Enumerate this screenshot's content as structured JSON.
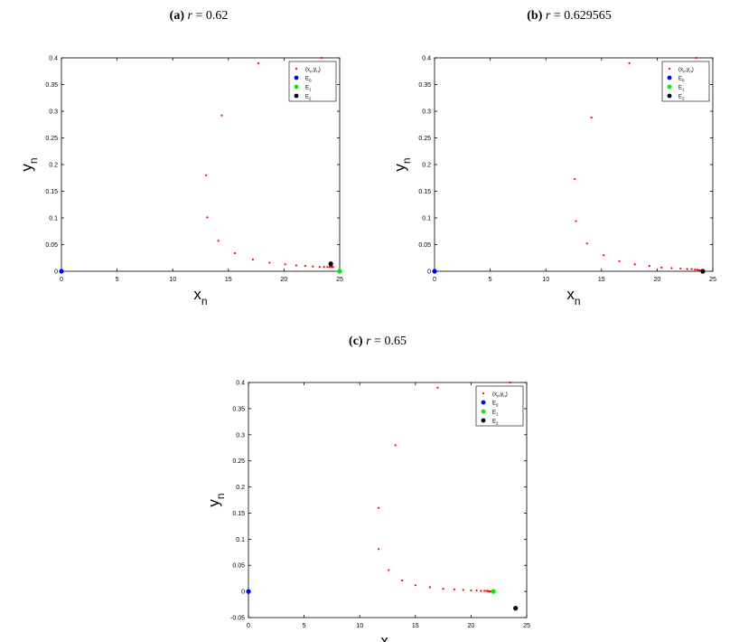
{
  "panels": [
    {
      "label": "(a)",
      "var": "r",
      "eq": " = ",
      "value": "0.62"
    },
    {
      "label": "(b)",
      "var": "r",
      "eq": " = ",
      "value": "0.629565"
    },
    {
      "label": "(c)",
      "var": "r",
      "eq": " = ",
      "value": "0.65"
    }
  ],
  "colors": {
    "orbit": "#ff0000",
    "E0": "#0000ff",
    "E1": "#00ee00",
    "E2": "#000000"
  },
  "chart_data": [
    {
      "type": "scatter",
      "title": "(a) r = 0.62",
      "xlabel": "x",
      "xlabel_sub": "n",
      "ylabel": "y",
      "ylabel_sub": "n",
      "xlim": [
        0,
        25
      ],
      "ylim": [
        0,
        0.4
      ],
      "xticks": [
        0,
        5,
        10,
        15,
        20,
        25
      ],
      "yticks": [
        0,
        0.05,
        0.1,
        0.15,
        0.2,
        0.25,
        0.3,
        0.35,
        0.4
      ],
      "legend": {
        "placement": "top-right",
        "entries": [
          {
            "key": "orbit",
            "text": "(x",
            "sub": "n",
            "mid": ",y",
            "sub2": "n",
            "end": ")"
          },
          {
            "key": "E0",
            "text": "E",
            "sub": "0"
          },
          {
            "key": "E1",
            "text": "E",
            "sub": "1"
          },
          {
            "key": "E2",
            "text": "E",
            "sub": "2"
          }
        ]
      },
      "series": [
        {
          "key": "orbit",
          "x": [
            23.4,
            17.7,
            14.4,
            13.0,
            13.1,
            14.1,
            15.6,
            17.2,
            18.7,
            20.1,
            21.1,
            21.9,
            22.6,
            23.2,
            23.6,
            23.9,
            24.1,
            24.2,
            24.3,
            24.35,
            24.4
          ],
          "y": [
            0.4,
            0.39,
            0.292,
            0.18,
            0.101,
            0.057,
            0.034,
            0.022,
            0.016,
            0.013,
            0.011,
            0.01,
            0.009,
            0.008,
            0.008,
            0.008,
            0.008,
            0.008,
            0.008,
            0.008,
            0.008
          ]
        },
        {
          "key": "E0",
          "x": [
            0
          ],
          "y": [
            0
          ],
          "marker": "big"
        },
        {
          "key": "E1",
          "x": [
            25
          ],
          "y": [
            0
          ],
          "marker": "big"
        },
        {
          "key": "E2",
          "x": [
            24.2
          ],
          "y": [
            0.014
          ],
          "marker": "big"
        }
      ]
    },
    {
      "type": "scatter",
      "title": "(b) r = 0.629565",
      "xlabel": "x",
      "xlabel_sub": "n",
      "ylabel": "y",
      "ylabel_sub": "n",
      "xlim": [
        0,
        25
      ],
      "ylim": [
        0,
        0.4
      ],
      "xticks": [
        0,
        5,
        10,
        15,
        20,
        25
      ],
      "yticks": [
        0,
        0.05,
        0.1,
        0.15,
        0.2,
        0.25,
        0.3,
        0.35,
        0.4
      ],
      "legend": {
        "placement": "top-right",
        "entries": [
          {
            "key": "orbit",
            "text": "(x",
            "sub": "n",
            "mid": ",y",
            "sub2": "n",
            "end": ")"
          },
          {
            "key": "E0",
            "text": "E",
            "sub": "0"
          },
          {
            "key": "E1",
            "text": "E",
            "sub": "1"
          },
          {
            "key": "E2",
            "text": "E",
            "sub": "2"
          }
        ]
      },
      "series": [
        {
          "key": "orbit",
          "x": [
            23.5,
            17.5,
            14.1,
            12.6,
            12.7,
            13.7,
            15.2,
            16.6,
            18.0,
            19.3,
            20.4,
            21.3,
            22.1,
            22.7,
            23.1,
            23.4,
            23.6,
            23.7,
            23.8,
            23.9,
            24.0
          ],
          "y": [
            0.4,
            0.39,
            0.288,
            0.173,
            0.094,
            0.052,
            0.03,
            0.019,
            0.013,
            0.01,
            0.007,
            0.006,
            0.005,
            0.004,
            0.004,
            0.003,
            0.003,
            0.002,
            0.002,
            0.001,
            0.001
          ]
        },
        {
          "key": "E0",
          "x": [
            0
          ],
          "y": [
            0
          ],
          "marker": "big"
        },
        {
          "key": "E1",
          "x": [
            24.1
          ],
          "y": [
            0
          ],
          "marker": "big"
        },
        {
          "key": "E2",
          "x": [
            24.1
          ],
          "y": [
            0
          ],
          "marker": "big"
        }
      ]
    },
    {
      "type": "scatter",
      "title": "(c) r = 0.65",
      "xlabel": "x",
      "xlabel_sub": "n",
      "ylabel": "y",
      "ylabel_sub": "n",
      "xlim": [
        0,
        25
      ],
      "ylim": [
        -0.05,
        0.4
      ],
      "xticks": [
        0,
        5,
        10,
        15,
        20,
        25
      ],
      "yticks": [
        -0.05,
        0,
        0.05,
        0.1,
        0.15,
        0.2,
        0.25,
        0.3,
        0.35,
        0.4
      ],
      "legend": {
        "placement": "top-right",
        "entries": [
          {
            "key": "orbit",
            "text": "(x",
            "sub": "n",
            "mid": ",y",
            "sub2": "n",
            "end": ")"
          },
          {
            "key": "E0",
            "text": "E",
            "sub": "0"
          },
          {
            "key": "E1",
            "text": "E",
            "sub": "1"
          },
          {
            "key": "E2",
            "text": "E",
            "sub": "2"
          }
        ]
      },
      "series": [
        {
          "key": "orbit",
          "x": [
            23.5,
            17.0,
            13.2,
            11.7,
            11.7,
            12.6,
            13.8,
            15.0,
            16.3,
            17.5,
            18.5,
            19.3,
            20.0,
            20.5,
            20.9,
            21.2,
            21.4,
            21.5,
            21.6,
            21.7,
            21.8
          ],
          "y": [
            0.4,
            0.39,
            0.28,
            0.16,
            0.081,
            0.041,
            0.021,
            0.012,
            0.008,
            0.005,
            0.004,
            0.003,
            0.002,
            0.002,
            0.001,
            0.001,
            0.001,
            0.001,
            0.0,
            0.0,
            0.0
          ]
        },
        {
          "key": "E0",
          "x": [
            0
          ],
          "y": [
            0
          ],
          "marker": "big"
        },
        {
          "key": "E1",
          "x": [
            22.0
          ],
          "y": [
            0
          ],
          "marker": "big"
        },
        {
          "key": "E2",
          "x": [
            24.0
          ],
          "y": [
            -0.032
          ],
          "marker": "big"
        }
      ]
    }
  ]
}
